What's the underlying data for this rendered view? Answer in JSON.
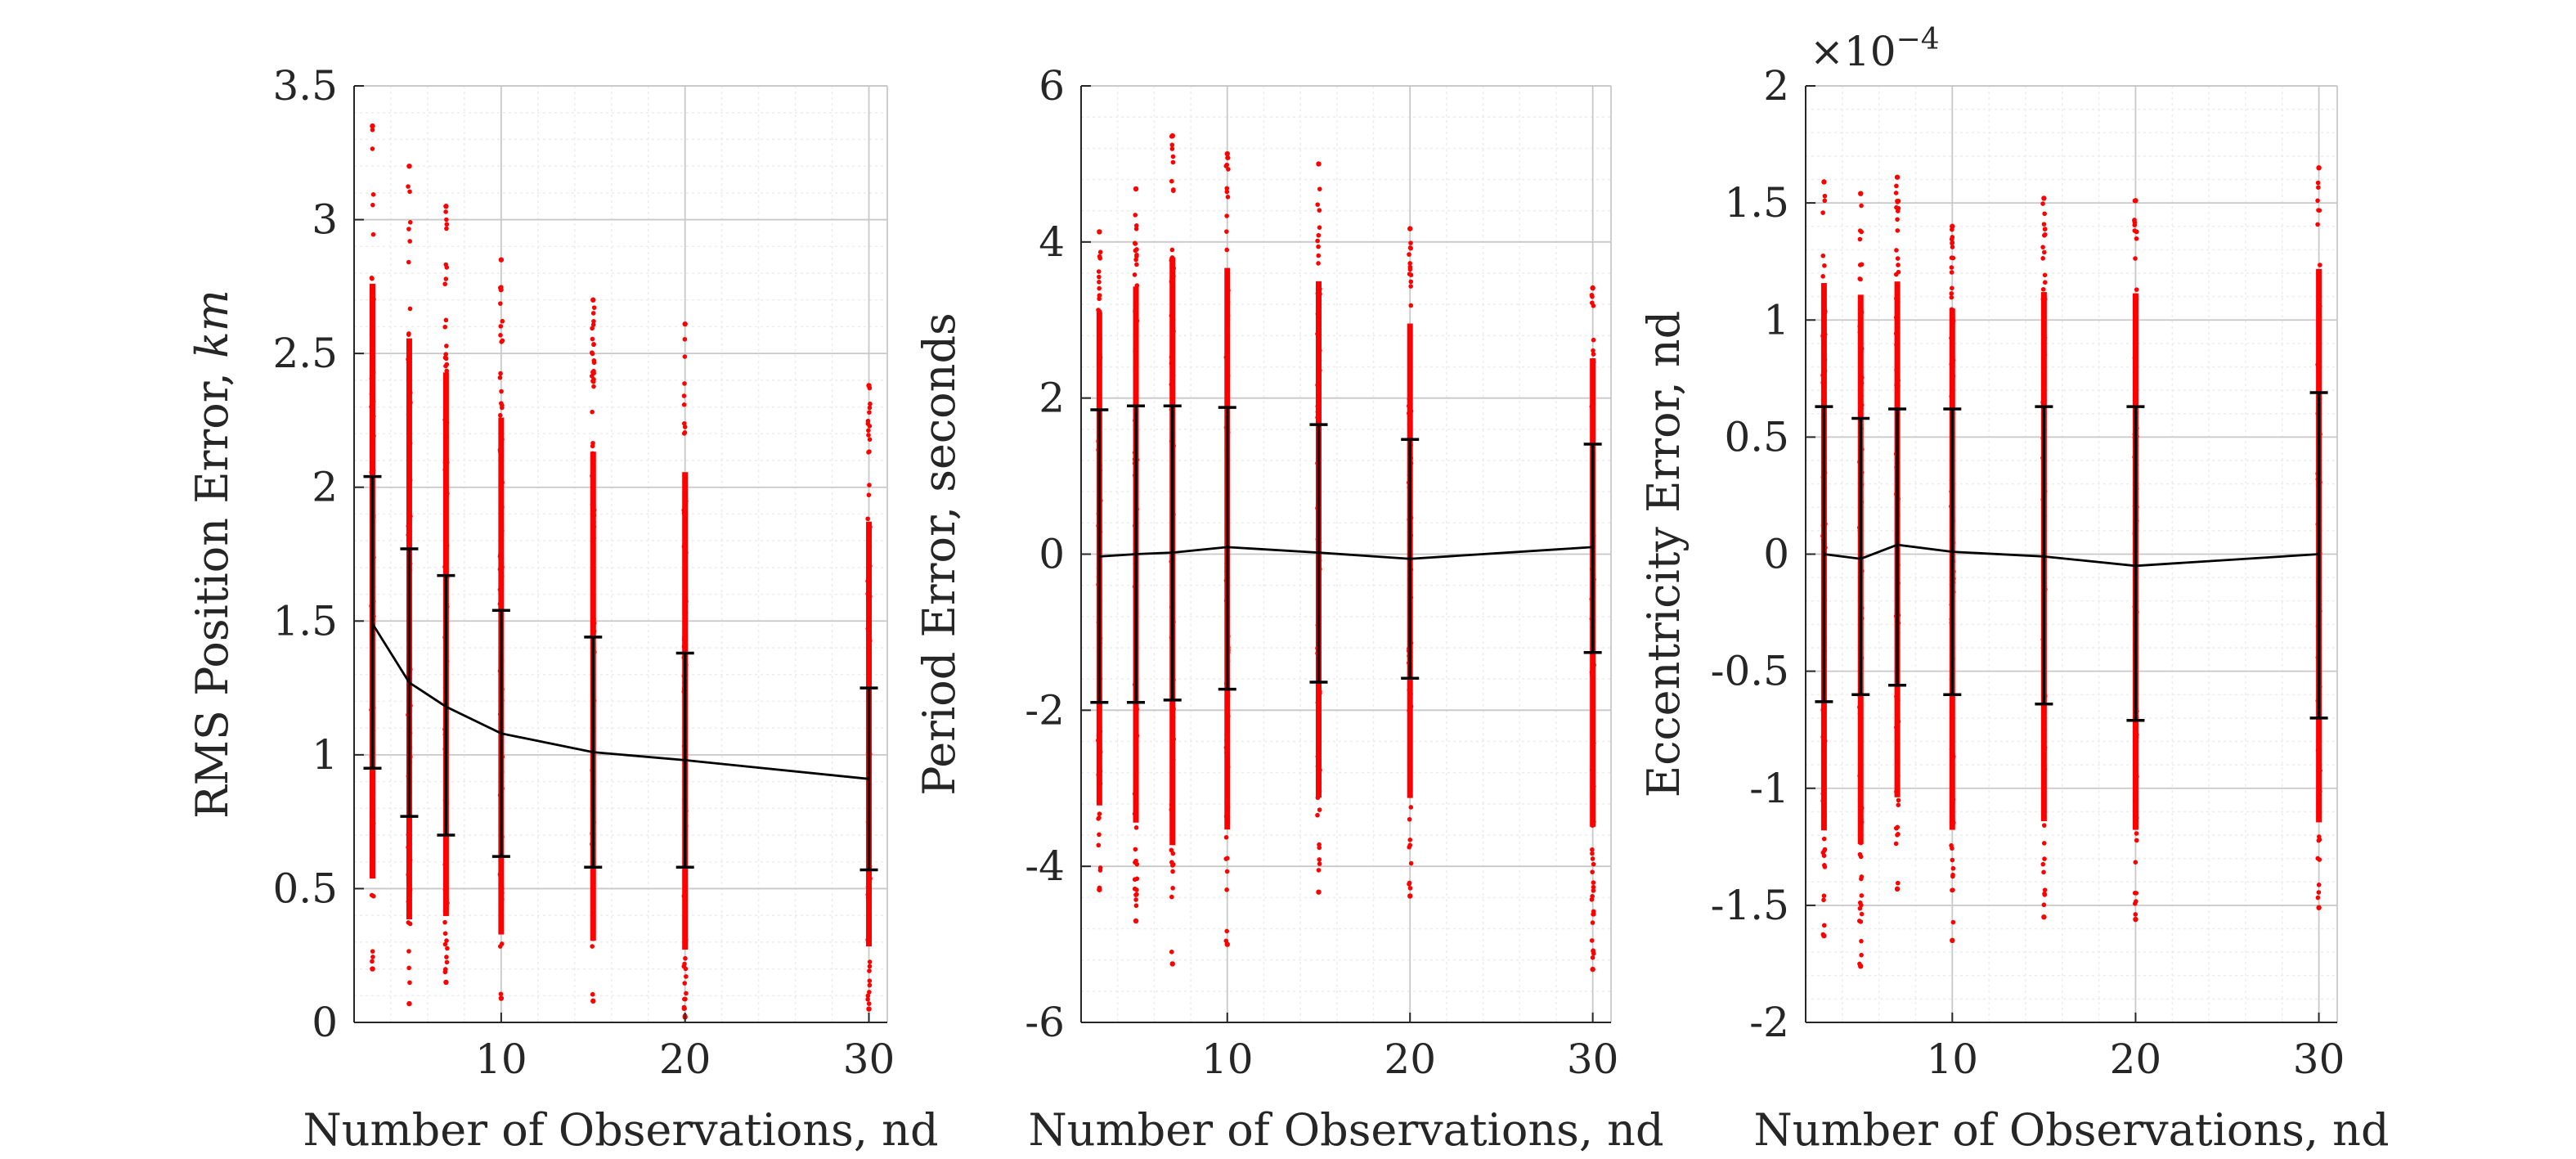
{
  "figure": {
    "background": "#ffffff"
  },
  "style": {
    "scatter_color": "#ff0000",
    "line_color": "#000000",
    "errorbar_color": "#000000",
    "axis_color": "#262626",
    "major_grid_color": "#c8c8c8",
    "minor_grid_color": "#ececec"
  },
  "chart_data": [
    {
      "type": "scatter",
      "panel": "rms-position",
      "title": "",
      "xlabel": "Number of Observations, nd",
      "ylabel_prefix": "RMS Position Error, ",
      "ylabel_unit": "km",
      "xlim": [
        2,
        31
      ],
      "ylim": [
        0,
        3.5
      ],
      "xticks": [
        10,
        20,
        30
      ],
      "xtick_labels": [
        "10",
        "20",
        "30"
      ],
      "yticks": [
        0,
        0.5,
        1,
        1.5,
        2,
        2.5,
        3,
        3.5
      ],
      "ytick_labels": [
        "0",
        "0.5",
        "1",
        "1.5",
        "2",
        "2.5",
        "3",
        "3.5"
      ],
      "exponent_label": "",
      "grid": true,
      "minor_grid": true,
      "x": [
        3,
        5,
        7,
        10,
        15,
        20,
        30
      ],
      "mean": [
        1.49,
        1.27,
        1.18,
        1.08,
        1.01,
        0.98,
        0.91
      ],
      "upper": [
        2.04,
        1.77,
        1.67,
        1.54,
        1.44,
        1.38,
        1.25
      ],
      "lower": [
        0.95,
        0.77,
        0.7,
        0.62,
        0.58,
        0.58,
        0.57
      ],
      "scatter_min": [
        0.2,
        0.07,
        0.15,
        0.09,
        0.08,
        0.02,
        0.05
      ],
      "scatter_max": [
        3.35,
        3.2,
        3.05,
        2.85,
        2.7,
        2.61,
        2.38
      ],
      "sample_count": 70
    },
    {
      "type": "scatter",
      "panel": "period",
      "title": "",
      "xlabel": "Number of Observations, nd",
      "ylabel_prefix": "Period Error, seconds",
      "ylabel_unit": "",
      "xlim": [
        2,
        31
      ],
      "ylim": [
        -6,
        6
      ],
      "xticks": [
        10,
        20,
        30
      ],
      "xtick_labels": [
        "10",
        "20",
        "30"
      ],
      "yticks": [
        -6,
        -4,
        -2,
        0,
        2,
        4,
        6
      ],
      "ytick_labels": [
        "-6",
        "-4",
        "-2",
        "0",
        "2",
        "4",
        "6"
      ],
      "exponent_label": "",
      "grid": true,
      "minor_grid": true,
      "x": [
        3,
        5,
        7,
        10,
        15,
        20,
        30
      ],
      "mean": [
        -0.03,
        0.0,
        0.02,
        0.09,
        0.02,
        -0.06,
        0.09
      ],
      "upper": [
        1.85,
        1.9,
        1.9,
        1.88,
        1.66,
        1.47,
        1.41
      ],
      "lower": [
        -1.9,
        -1.9,
        -1.87,
        -1.73,
        -1.64,
        -1.59,
        -1.26
      ],
      "scatter_min": [
        -4.3,
        -4.7,
        -5.25,
        -5.0,
        -4.33,
        -4.38,
        -5.32
      ],
      "scatter_max": [
        4.13,
        4.68,
        5.36,
        5.13,
        5.0,
        4.17,
        3.41
      ],
      "sample_count": 70
    },
    {
      "type": "scatter",
      "panel": "eccentricity",
      "title": "",
      "xlabel": "Number of Observations, nd",
      "ylabel_prefix": "Eccentricity Error, nd",
      "ylabel_unit": "",
      "xlim": [
        2,
        31
      ],
      "ylim": [
        -2,
        2
      ],
      "xticks": [
        10,
        20,
        30
      ],
      "xtick_labels": [
        "10",
        "20",
        "30"
      ],
      "yticks": [
        -2,
        -1.5,
        -1,
        -0.5,
        0,
        0.5,
        1,
        1.5,
        2
      ],
      "ytick_labels": [
        "-2",
        "-1.5",
        "-1",
        "-0.5",
        "0",
        "0.5",
        "1",
        "1.5",
        "2"
      ],
      "exponent_label": "×10",
      "exponent_power": "−4",
      "grid": true,
      "minor_grid": true,
      "x": [
        3,
        5,
        7,
        10,
        15,
        20,
        30
      ],
      "mean": [
        0.0,
        -0.02,
        0.04,
        0.01,
        -0.01,
        -0.05,
        0.0
      ],
      "upper": [
        0.63,
        0.58,
        0.62,
        0.62,
        0.63,
        0.63,
        0.69
      ],
      "lower": [
        -0.63,
        -0.6,
        -0.56,
        -0.6,
        -0.64,
        -0.71,
        -0.7
      ],
      "scatter_min": [
        -1.63,
        -1.76,
        -1.43,
        -1.65,
        -1.55,
        -1.56,
        -1.51
      ],
      "scatter_max": [
        1.59,
        1.54,
        1.61,
        1.4,
        1.52,
        1.51,
        1.65
      ],
      "sample_count": 70
    }
  ]
}
